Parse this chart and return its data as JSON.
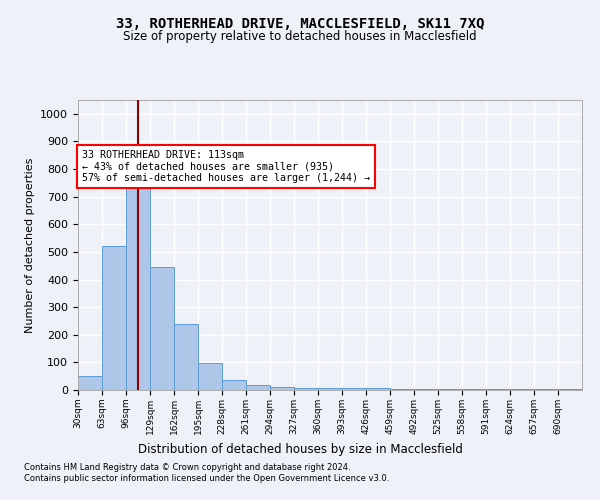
{
  "title": "33, ROTHERHEAD DRIVE, MACCLESFIELD, SK11 7XQ",
  "subtitle": "Size of property relative to detached houses in Macclesfield",
  "xlabel": "Distribution of detached houses by size in Macclesfield",
  "ylabel": "Number of detached properties",
  "bar_values": [
    50,
    520,
    800,
    445,
    238,
    97,
    35,
    17,
    12,
    8,
    8,
    8,
    8,
    5,
    5,
    5,
    5,
    5,
    5,
    5,
    5
  ],
  "bin_edges": [
    30,
    63,
    96,
    129,
    162,
    195,
    228,
    261,
    294,
    327,
    360,
    393,
    426,
    459,
    492,
    525,
    558,
    591,
    624,
    657,
    690,
    723
  ],
  "xtick_labels": [
    "30sqm",
    "63sqm",
    "96sqm",
    "129sqm",
    "162sqm",
    "195sqm",
    "228sqm",
    "261sqm",
    "294sqm",
    "327sqm",
    "360sqm",
    "393sqm",
    "426sqm",
    "459sqm",
    "492sqm",
    "525sqm",
    "558sqm",
    "591sqm",
    "624sqm",
    "657sqm",
    "690sqm"
  ],
  "ylim": [
    0,
    1050
  ],
  "yticks": [
    0,
    100,
    200,
    300,
    400,
    500,
    600,
    700,
    800,
    900,
    1000
  ],
  "bar_color": "#aec6e8",
  "bar_edge_color": "#5b9bd5",
  "property_value": 113,
  "vline_color": "#8b0000",
  "annotation_line1": "33 ROTHERHEAD DRIVE: 113sqm",
  "annotation_line2": "← 43% of detached houses are smaller (935)",
  "annotation_line3": "57% of semi-detached houses are larger (1,244) →",
  "annotation_box_color": "white",
  "annotation_box_edge": "red",
  "footer_line1": "Contains HM Land Registry data © Crown copyright and database right 2024.",
  "footer_line2": "Contains public sector information licensed under the Open Government Licence v3.0.",
  "background_color": "#eef2f8",
  "grid_color": "white"
}
